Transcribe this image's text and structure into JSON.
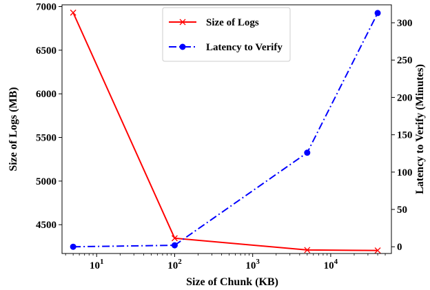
{
  "chart_data": {
    "type": "line",
    "x_scale": "log",
    "xlabel": "Size of Chunk (KB)",
    "xlim": [
      3.6,
      60000
    ],
    "x_ticks": [
      {
        "value": 10,
        "base": "10",
        "exp": "1"
      },
      {
        "value": 100,
        "base": "10",
        "exp": "2"
      },
      {
        "value": 1000,
        "base": "10",
        "exp": "3"
      },
      {
        "value": 10000,
        "base": "10",
        "exp": "4"
      }
    ],
    "left_axis": {
      "label": "Size of Logs (MB)",
      "ylim": [
        4170,
        7020
      ],
      "ticks": [
        4500,
        5000,
        5500,
        6000,
        6500,
        7000
      ]
    },
    "right_axis": {
      "label": "Latency to Verify (Minutes)",
      "ylim": [
        -9,
        324
      ],
      "ticks": [
        0,
        50,
        100,
        150,
        200,
        250,
        300
      ]
    },
    "legend_position": "top-center",
    "grid": false,
    "series": [
      {
        "name": "Size of Logs",
        "axis": "left",
        "color": "#ff0000",
        "line_style": "solid",
        "marker": "x",
        "x": [
          5,
          100,
          5000,
          40000
        ],
        "values": [
          6930,
          4345,
          4210,
          4205
        ]
      },
      {
        "name": "Latency to Verify",
        "axis": "right",
        "color": "#0000ff",
        "line_style": "dashdot",
        "marker": "circle",
        "x": [
          5,
          100,
          5000,
          40000
        ],
        "values": [
          0,
          2,
          126,
          313
        ]
      }
    ]
  }
}
